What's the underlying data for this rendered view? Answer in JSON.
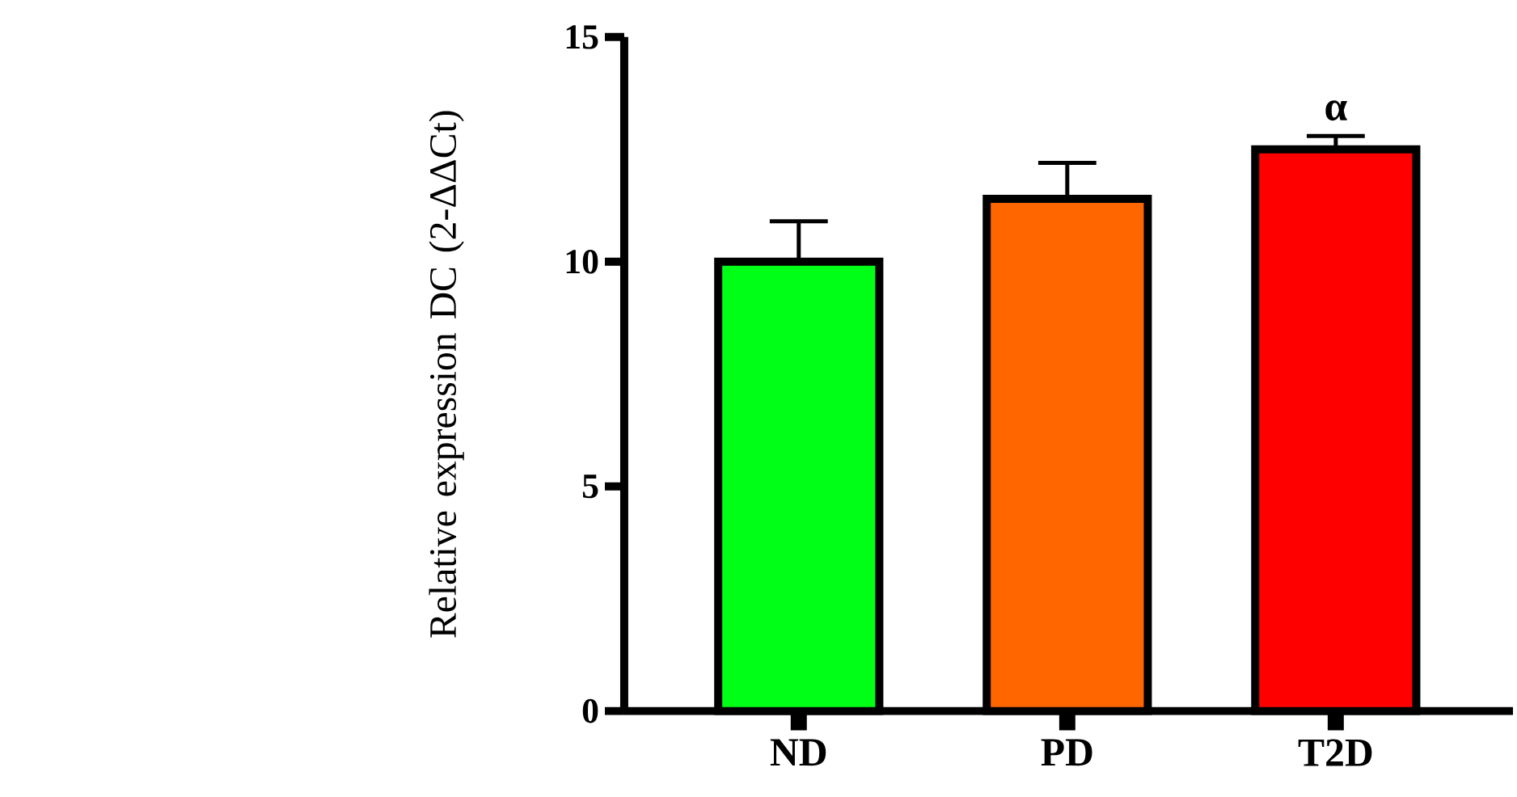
{
  "chart_data": {
    "type": "bar",
    "ylabel": "Relative expression DC (2-ΔΔCt)",
    "categories": [
      "ND",
      "PD",
      "T2D"
    ],
    "values": [
      10.0,
      11.4,
      12.5
    ],
    "errors": [
      [
        10.0,
        10.9
      ],
      [
        11.4,
        12.2
      ],
      [
        12.5,
        12.8
      ]
    ],
    "colors": [
      "#00ff17",
      "#ff6600",
      "#ff0000"
    ],
    "ylim": [
      0,
      15
    ],
    "yticks": [
      0,
      5,
      10,
      15
    ],
    "annotations": [
      "α"
    ]
  }
}
